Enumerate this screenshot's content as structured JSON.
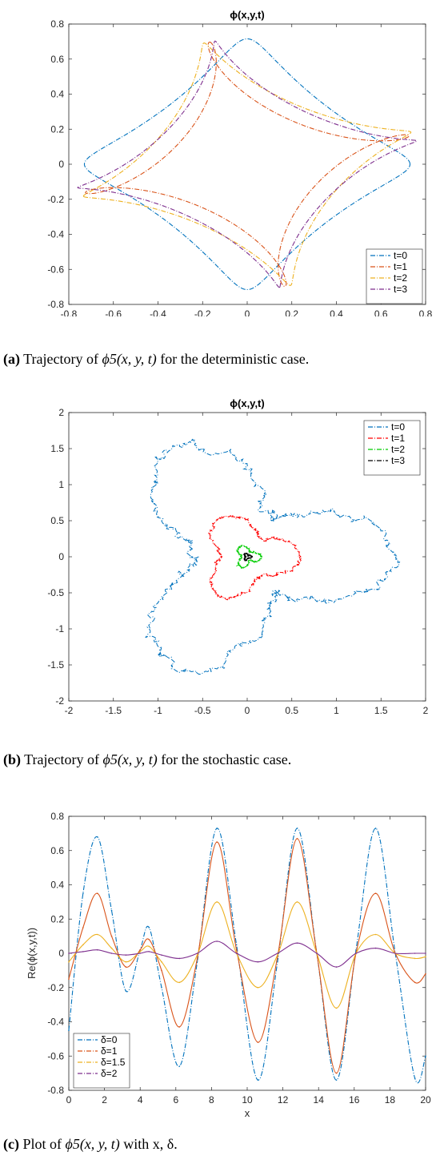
{
  "chart_data": [
    {
      "type": "line",
      "panel": "a",
      "title": "ϕ(x,y,t)",
      "xlabel": "",
      "ylabel": "",
      "xlim": [
        -0.8,
        0.8
      ],
      "ylim": [
        -0.8,
        0.8
      ],
      "xticks": [
        "-0.8",
        "-0.6",
        "-0.4",
        "-0.2",
        "0",
        "0.2",
        "0.4",
        "0.6",
        "0.8"
      ],
      "yticks": [
        "-0.8",
        "-0.6",
        "-0.4",
        "-0.2",
        "0",
        "0.2",
        "0.4",
        "0.6",
        "0.8"
      ],
      "grid": false,
      "legend_position": "bottom-right",
      "series": [
        {
          "name": "t=0",
          "color": "#0072BD",
          "shape": "rose",
          "outer": 0.73,
          "a": 0.56,
          "b": 0.11,
          "cx": 0.0,
          "cy": 0.0,
          "phase": 0.0
        },
        {
          "name": "t=1",
          "color": "#D95319",
          "shape": "rose",
          "outer": 0.73,
          "a": 0.56,
          "b": 0.22,
          "cx": 0.0,
          "cy": 0.0,
          "phase": 1.8
        },
        {
          "name": "t=2",
          "color": "#EDB120",
          "shape": "rose",
          "outer": 0.73,
          "a": 0.56,
          "b": 0.16,
          "cx": 0.0,
          "cy": 0.0,
          "phase": 3.4
        },
        {
          "name": "t=3",
          "color": "#7E2F8E",
          "shape": "rose",
          "outer": 0.73,
          "a": 0.56,
          "b": 0.17,
          "cx": 0.0,
          "cy": 0.0,
          "phase": 4.9
        }
      ]
    },
    {
      "type": "line",
      "panel": "b",
      "title": "ϕ(x,y,t)",
      "xlabel": "",
      "ylabel": "",
      "xlim": [
        -2,
        2
      ],
      "ylim": [
        -2,
        2
      ],
      "xticks": [
        "-2",
        "-1.5",
        "-1",
        "-0.5",
        "0",
        "0.5",
        "1",
        "1.5",
        "2"
      ],
      "yticks": [
        "-2",
        "-1.5",
        "-1",
        "-0.5",
        "0",
        "0.5",
        "1",
        "1.5",
        "2"
      ],
      "grid": false,
      "legend_position": "top-right",
      "series": [
        {
          "name": "t=0",
          "color": "#0072BD",
          "outer_radius": 1.65,
          "inner_radius": 0.62,
          "noise": 0.06
        },
        {
          "name": "t=1",
          "color": "#FF0000",
          "outer_radius": 0.6,
          "inner_radius": 0.3,
          "noise": 0.025
        },
        {
          "name": "t=2",
          "color": "#00CC00",
          "outer_radius": 0.16,
          "inner_radius": 0.07,
          "noise": 0.012
        },
        {
          "name": "t=3",
          "color": "#000000",
          "outer_radius": 0.05,
          "inner_radius": 0.02,
          "noise": 0.006
        }
      ]
    },
    {
      "type": "line",
      "panel": "c",
      "title": "",
      "xlabel": "x",
      "ylabel": "Re(ϕ(x,y,t))",
      "xlim": [
        0,
        20
      ],
      "ylim": [
        -0.8,
        0.8
      ],
      "xticks": [
        "0",
        "2",
        "4",
        "6",
        "8",
        "10",
        "12",
        "14",
        "16",
        "18",
        "20"
      ],
      "yticks": [
        "-0.8",
        "-0.6",
        "-0.4",
        "-0.2",
        "0",
        "0.2",
        "0.4",
        "0.6",
        "0.8"
      ],
      "grid": false,
      "legend_position": "bottom-left",
      "x": [
        0,
        0.8,
        1.6,
        2.4,
        3.2,
        4.0,
        4.5,
        5.2,
        6.2,
        7.2,
        8.3,
        9.4,
        10.6,
        11.7,
        12.8,
        13.9,
        15.0,
        16.1,
        17.2,
        18.3,
        19.4,
        20
      ],
      "series": [
        {
          "name": "δ=0",
          "color": "#0072BD",
          "values": [
            -0.45,
            0.35,
            0.68,
            0.25,
            -0.22,
            0.02,
            0.15,
            -0.2,
            -0.66,
            -0.05,
            0.73,
            0.05,
            -0.74,
            -0.05,
            0.73,
            0.0,
            -0.74,
            0.02,
            0.73,
            0.0,
            -0.73,
            -0.6
          ]
        },
        {
          "name": "δ=1",
          "color": "#D95319",
          "values": [
            -0.15,
            0.15,
            0.35,
            0.1,
            -0.08,
            0.02,
            0.08,
            -0.1,
            -0.43,
            -0.03,
            0.65,
            0.02,
            -0.52,
            -0.02,
            0.67,
            0.0,
            -0.7,
            0.0,
            0.35,
            0.0,
            -0.17,
            -0.12
          ]
        },
        {
          "name": "δ=1.5",
          "color": "#EDB120",
          "values": [
            -0.05,
            0.05,
            0.11,
            0.03,
            -0.05,
            0.01,
            0.04,
            -0.05,
            -0.17,
            -0.01,
            0.3,
            0.0,
            -0.2,
            -0.01,
            0.3,
            0.0,
            -0.32,
            0.0,
            0.11,
            0.0,
            -0.03,
            -0.02
          ]
        },
        {
          "name": "δ=2",
          "color": "#7E2F8E",
          "values": [
            0.0,
            0.01,
            0.02,
            0.0,
            -0.01,
            0.0,
            0.01,
            -0.01,
            -0.03,
            0.0,
            0.07,
            0.0,
            -0.05,
            0.0,
            0.06,
            0.0,
            -0.08,
            0.0,
            0.03,
            0.0,
            0.0,
            0.0
          ]
        }
      ]
    }
  ],
  "captions": [
    {
      "letter": "(a)",
      "prefix": " Trajectory of ",
      "math": "ϕ5(x, y, t)",
      "suffix": " for the deterministic case."
    },
    {
      "letter": "(b)",
      "prefix": " Trajectory of ",
      "math": "ϕ5(x, y, t)",
      "suffix": " for the stochastic case."
    },
    {
      "letter": "(c)",
      "prefix": " Plot of ",
      "math": "ϕ5(x, y, t)",
      "suffix": " with x, δ."
    }
  ]
}
